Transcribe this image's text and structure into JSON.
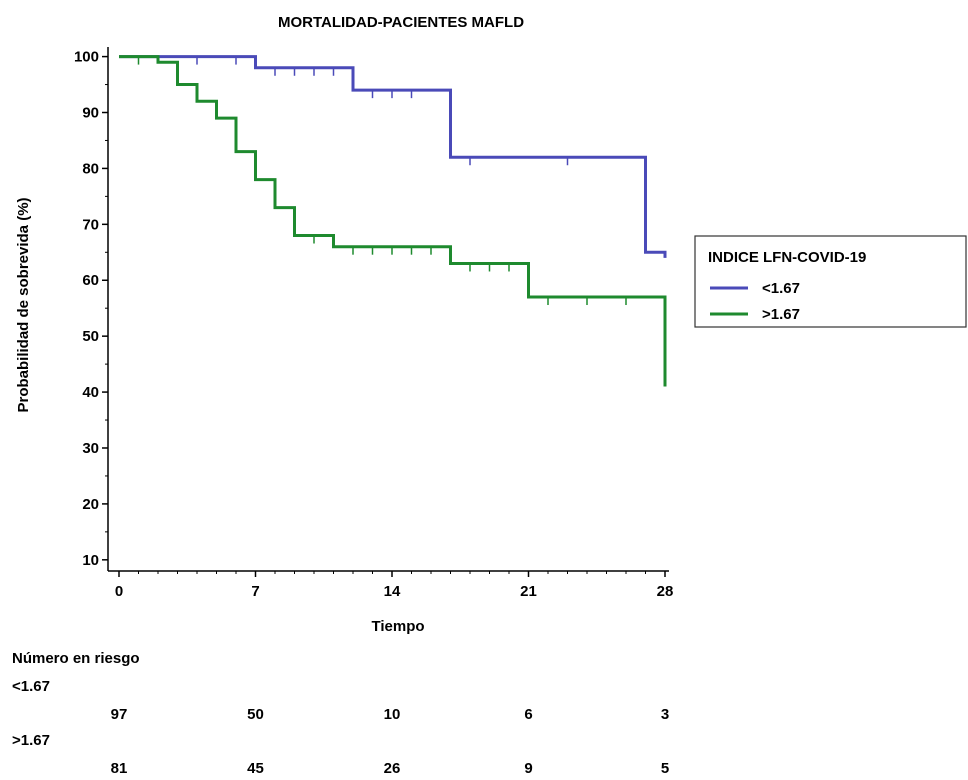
{
  "chart_data": {
    "type": "line",
    "title": "MORTALIDAD-PACIENTES MAFLD",
    "xlabel": "Tiempo",
    "ylabel": "Probabilidad de sobrevida (%)",
    "xlim": [
      0,
      28
    ],
    "ylim": [
      8,
      101
    ],
    "x_ticks": [
      0,
      7,
      14,
      21,
      28
    ],
    "y_ticks": [
      10,
      20,
      30,
      40,
      50,
      60,
      70,
      80,
      90,
      100
    ],
    "grid": false,
    "legend": {
      "title": "INDICE LFN-COVID-19",
      "placement": "right"
    },
    "series": [
      {
        "name": "<1.67",
        "color": "#4a4ab8",
        "steps": [
          [
            0,
            100
          ],
          [
            7,
            100
          ],
          [
            7,
            98
          ],
          [
            12,
            98
          ],
          [
            12,
            94
          ],
          [
            17,
            94
          ],
          [
            17,
            82
          ],
          [
            27,
            82
          ],
          [
            27,
            65
          ],
          [
            28,
            65
          ],
          [
            28,
            64
          ]
        ],
        "censored": [
          [
            4,
            100
          ],
          [
            6,
            100
          ],
          [
            8,
            98
          ],
          [
            9,
            98
          ],
          [
            10,
            98
          ],
          [
            11,
            98
          ],
          [
            13,
            94
          ],
          [
            14,
            94
          ],
          [
            15,
            94
          ],
          [
            18,
            82
          ],
          [
            23,
            82
          ]
        ]
      },
      {
        "name": ">1.67",
        "color": "#1e8a2e",
        "steps": [
          [
            0,
            100
          ],
          [
            2,
            100
          ],
          [
            2,
            99
          ],
          [
            3,
            99
          ],
          [
            3,
            95
          ],
          [
            4,
            95
          ],
          [
            4,
            92
          ],
          [
            5,
            92
          ],
          [
            5,
            89
          ],
          [
            6,
            89
          ],
          [
            6,
            83
          ],
          [
            7,
            83
          ],
          [
            7,
            78
          ],
          [
            8,
            78
          ],
          [
            8,
            73
          ],
          [
            9,
            73
          ],
          [
            9,
            68
          ],
          [
            11,
            68
          ],
          [
            11,
            66
          ],
          [
            17,
            66
          ],
          [
            17,
            63
          ],
          [
            21,
            63
          ],
          [
            21,
            57
          ],
          [
            28,
            57
          ],
          [
            28,
            41
          ]
        ],
        "censored": [
          [
            1,
            100
          ],
          [
            10,
            68
          ],
          [
            12,
            66
          ],
          [
            13,
            66
          ],
          [
            14,
            66
          ],
          [
            15,
            66
          ],
          [
            16,
            66
          ],
          [
            18,
            63
          ],
          [
            19,
            63
          ],
          [
            20,
            63
          ],
          [
            22,
            57
          ],
          [
            24,
            57
          ],
          [
            26,
            57
          ]
        ]
      }
    ],
    "risk_table": {
      "title": "Número en riesgo",
      "times": [
        0,
        7,
        14,
        21,
        28
      ],
      "rows": [
        {
          "label": "<1.67",
          "values": [
            97,
            50,
            10,
            6,
            3
          ]
        },
        {
          "label": ">1.67",
          "values": [
            81,
            45,
            26,
            9,
            5
          ]
        }
      ]
    }
  }
}
